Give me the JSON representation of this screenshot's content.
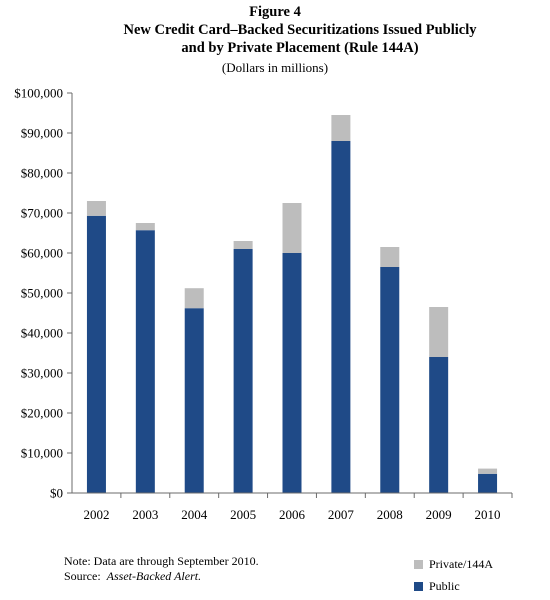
{
  "figure": {
    "label": "Figure 4",
    "title_line1": "New Credit Card–Backed Securitizations Issued Publicly",
    "title_line2": "and by Private Placement (Rule 144A)",
    "subtitle": "(Dollars in millions)"
  },
  "note": {
    "note_text": "Note:  Data are through September 2010.",
    "source_prefix": "Source:  ",
    "source_text": "Asset-Backed Alert."
  },
  "colors": {
    "public": "#1f4a87",
    "private": "#bdbdbd",
    "axis": "#6b6b6b"
  },
  "chart_data": {
    "type": "bar",
    "stacked": true,
    "categories": [
      "2002",
      "2003",
      "2004",
      "2005",
      "2006",
      "2007",
      "2008",
      "2009",
      "2010"
    ],
    "series": [
      {
        "name": "Public",
        "values": [
          69300,
          65700,
          46200,
          61000,
          60000,
          88000,
          56500,
          34000,
          4800
        ]
      },
      {
        "name": "Private/144A",
        "values": [
          3700,
          1800,
          5000,
          2000,
          12500,
          6500,
          5000,
          12500,
          1300
        ]
      }
    ],
    "y_ticks": [
      "$0",
      "$10,000",
      "$20,000",
      "$30,000",
      "$40,000",
      "$50,000",
      "$60,000",
      "$70,000",
      "$80,000",
      "$90,000",
      "$100,000"
    ],
    "ylim": [
      0,
      100000
    ],
    "ytick_step": 10000,
    "grid": false,
    "legend_position": "bottom-right",
    "legend_order": [
      "Private/144A",
      "Public"
    ]
  }
}
